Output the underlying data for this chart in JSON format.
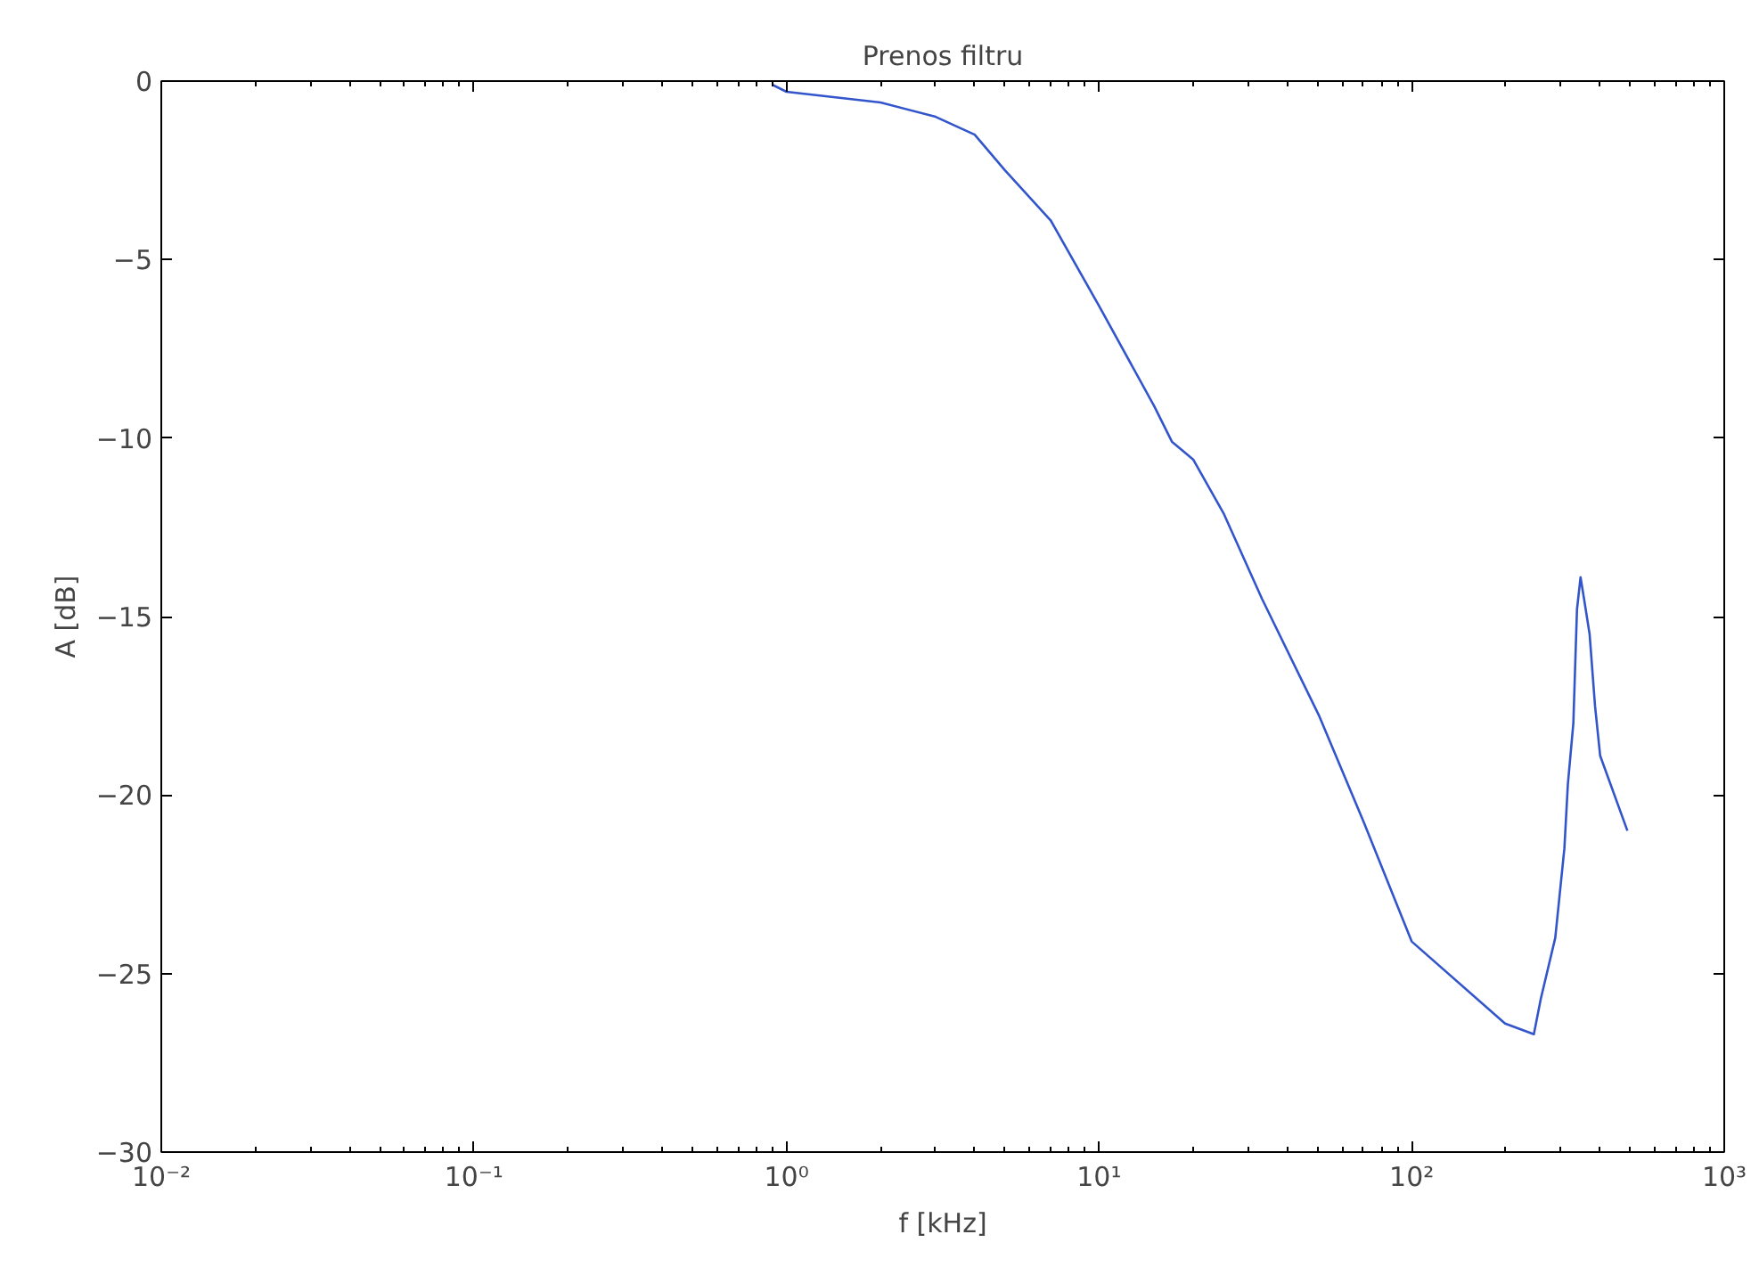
{
  "chart_data": {
    "type": "line",
    "title": "Prenos filtru",
    "xlabel": "f [kHz]",
    "ylabel": "A [dB]",
    "log": "x",
    "grid": false,
    "xlim": [
      0.01,
      1000
    ],
    "ylim": [
      -30,
      0
    ],
    "xticks": [
      {
        "value": 0.01,
        "label": "10⁻²"
      },
      {
        "value": 0.1,
        "label": "10⁻¹"
      },
      {
        "value": 1,
        "label": "10⁰"
      },
      {
        "value": 10,
        "label": "10¹"
      },
      {
        "value": 100,
        "label": "10²"
      },
      {
        "value": 1000,
        "label": "10³"
      }
    ],
    "yticks": [
      -30,
      -25,
      -20,
      -15,
      -10,
      -5,
      0
    ],
    "series": [
      {
        "color": "#3355cc",
        "x": [
          0.9,
          1,
          2,
          3,
          4,
          5,
          7,
          10,
          15,
          17.1,
          20,
          25,
          33.2,
          50.7,
          70.6,
          100,
          199,
          246,
          259,
          288,
          308,
          316,
          329,
          338,
          347,
          356,
          371,
          386,
          401,
          490
        ],
        "values": [
          -0.1,
          -0.3,
          -0.6,
          -1.0,
          -1.5,
          -2.5,
          -3.9,
          -6.3,
          -9.1,
          -10.1,
          -10.6,
          -12.1,
          -14.5,
          -17.8,
          -20.8,
          -24.1,
          -26.4,
          -26.7,
          -25.7,
          -24.0,
          -21.5,
          -19.7,
          -18.0,
          -14.8,
          -13.9,
          -14.5,
          -15.5,
          -17.5,
          -18.9,
          -21.0
        ]
      }
    ]
  }
}
